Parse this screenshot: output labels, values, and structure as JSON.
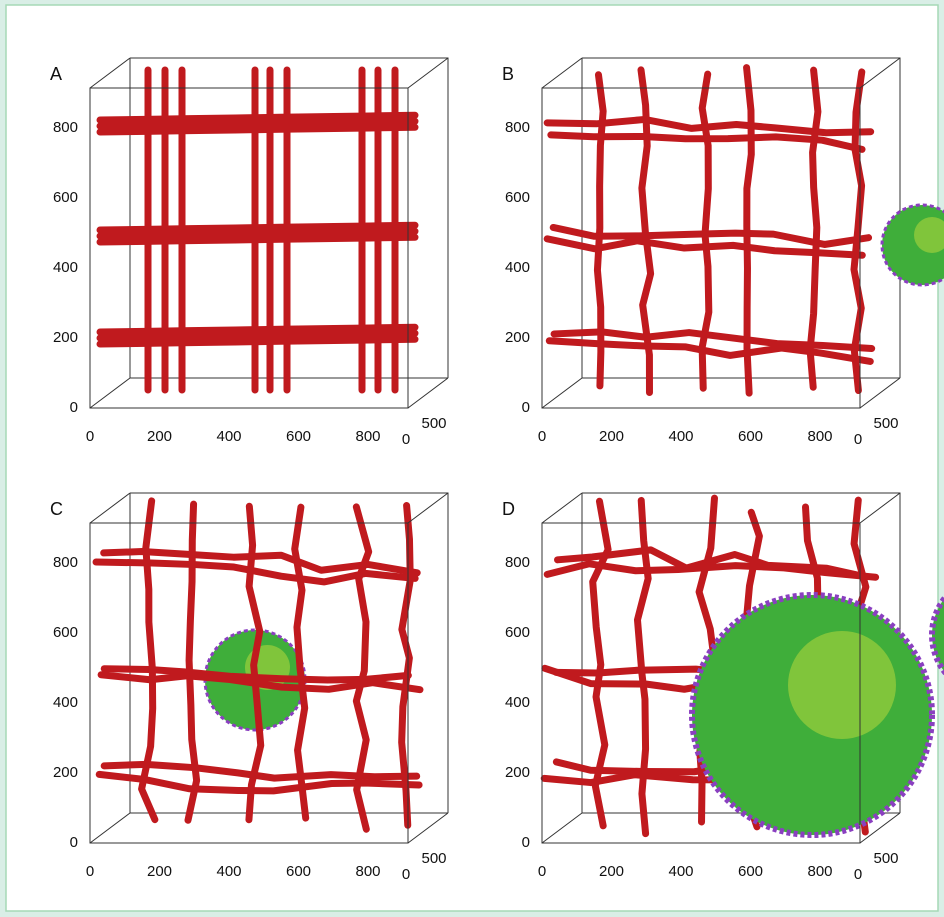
{
  "panels": [
    {
      "label": "A",
      "yticks": [
        "0",
        "200",
        "400",
        "600",
        "800"
      ],
      "xticks": [
        "0",
        "200",
        "400",
        "600",
        "800"
      ],
      "zticks": [
        "0",
        "500"
      ]
    },
    {
      "label": "B",
      "yticks": [
        "0",
        "200",
        "400",
        "600",
        "800"
      ],
      "xticks": [
        "0",
        "200",
        "400",
        "600",
        "800"
      ],
      "zticks": [
        "0",
        "500"
      ]
    },
    {
      "label": "C",
      "yticks": [
        "0",
        "200",
        "400",
        "600",
        "800"
      ],
      "xticks": [
        "0",
        "200",
        "400",
        "600",
        "800"
      ],
      "zticks": [
        "0",
        "500"
      ]
    },
    {
      "label": "D",
      "yticks": [
        "0",
        "200",
        "400",
        "600",
        "800"
      ],
      "xticks": [
        "0",
        "200",
        "400",
        "600",
        "800"
      ],
      "zticks": [
        "0",
        "500"
      ]
    }
  ]
}
